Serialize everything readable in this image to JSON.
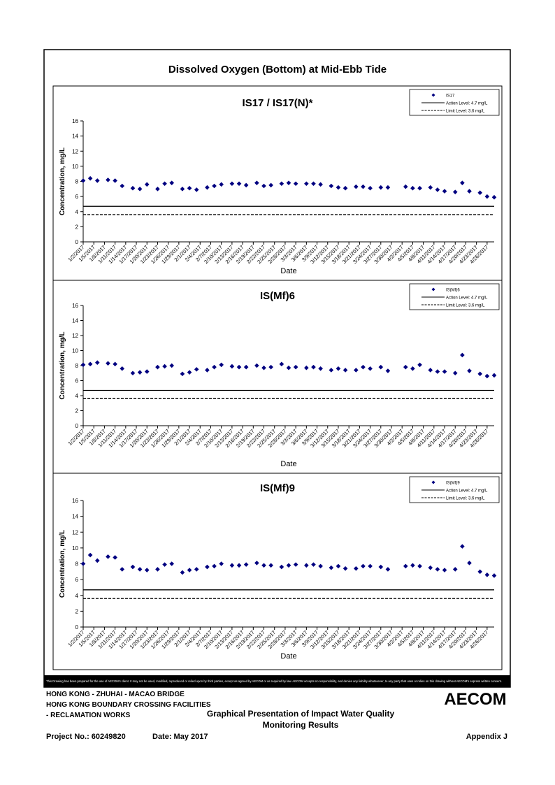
{
  "header": {
    "title": "Dissolved Oxygen (Bottom) at Mid-Ebb Tide"
  },
  "chart_data": [
    {
      "type": "scatter",
      "title": "IS17 / IS17(N)*",
      "xlabel": "Date",
      "ylabel": "Concentration, mg/L",
      "xlim": [
        "1/2/2017",
        "4/28/2017"
      ],
      "ylim": [
        0,
        16
      ],
      "yticks": [
        0,
        2,
        4,
        6,
        8,
        10,
        12,
        14,
        16
      ],
      "xticks": [
        "1/2/2017",
        "1/5/2017",
        "1/8/2017",
        "1/11/2017",
        "1/14/2017",
        "1/17/2017",
        "1/20/2017",
        "1/23/2017",
        "1/26/2017",
        "1/29/2017",
        "2/1/2017",
        "2/4/2017",
        "2/7/2017",
        "2/10/2017",
        "2/13/2017",
        "2/16/2017",
        "2/19/2017",
        "2/22/2017",
        "2/25/2017",
        "2/28/2017",
        "3/3/2017",
        "3/6/2017",
        "3/9/2017",
        "3/12/2017",
        "3/15/2017",
        "3/18/2017",
        "3/21/2017",
        "3/24/2017",
        "3/27/2017",
        "3/30/2017",
        "4/2/2017",
        "4/5/2017",
        "4/8/2017",
        "4/11/2017",
        "4/14/2017",
        "4/17/2017",
        "4/20/2017",
        "4/23/2017",
        "4/26/2017"
      ],
      "series": [
        {
          "name": "IS17",
          "color": "#000080",
          "x": [
            "1/2/2017",
            "1/4/2017",
            "1/6/2017",
            "1/9/2017",
            "1/11/2017",
            "1/13/2017",
            "1/16/2017",
            "1/18/2017",
            "1/20/2017",
            "1/23/2017",
            "1/25/2017",
            "1/27/2017",
            "1/30/2017",
            "2/1/2017",
            "2/3/2017",
            "2/6/2017",
            "2/8/2017",
            "2/10/2017",
            "2/13/2017",
            "2/15/2017",
            "2/17/2017",
            "2/20/2017",
            "2/22/2017",
            "2/24/2017",
            "2/27/2017",
            "3/1/2017",
            "3/3/2017",
            "3/6/2017",
            "3/8/2017",
            "3/10/2017",
            "3/13/2017",
            "3/15/2017",
            "3/17/2017",
            "3/20/2017",
            "3/22/2017",
            "3/24/2017",
            "3/27/2017",
            "3/29/2017",
            "4/3/2017",
            "4/5/2017",
            "4/7/2017",
            "4/10/2017",
            "4/12/2017",
            "4/14/2017",
            "4/17/2017",
            "4/19/2017",
            "4/21/2017",
            "4/24/2017",
            "4/26/2017",
            "4/28/2017"
          ],
          "values": [
            8.1,
            8.4,
            8.1,
            8.2,
            8.1,
            7.4,
            7.1,
            7.0,
            7.6,
            7.0,
            7.7,
            7.8,
            7.0,
            7.1,
            6.9,
            7.2,
            7.4,
            7.6,
            7.7,
            7.7,
            7.5,
            7.8,
            7.4,
            7.5,
            7.7,
            7.8,
            7.7,
            7.7,
            7.7,
            7.6,
            7.4,
            7.2,
            7.1,
            7.3,
            7.3,
            7.1,
            7.2,
            7.2,
            7.3,
            7.1,
            7.1,
            7.2,
            6.9,
            6.7,
            6.6,
            7.8,
            6.7,
            6.5,
            6.0,
            5.9
          ]
        }
      ],
      "reference_lines": [
        {
          "name": "Action Level: 4.7 mg/L",
          "value": 4.7,
          "style": "solid"
        },
        {
          "name": "Limit Level: 3.6 mg/L",
          "value": 3.6,
          "style": "dashed"
        }
      ]
    },
    {
      "type": "scatter",
      "title": "IS(Mf)6",
      "xlabel": "Date",
      "ylabel": "Concentration, mg/L",
      "xlim": [
        "1/2/2017",
        "4/28/2017"
      ],
      "ylim": [
        0,
        16
      ],
      "yticks": [
        0,
        2,
        4,
        6,
        8,
        10,
        12,
        14,
        16
      ],
      "xticks": [
        "1/2/2017",
        "1/5/2017",
        "1/8/2017",
        "1/11/2017",
        "1/14/2017",
        "1/17/2017",
        "1/20/2017",
        "1/23/2017",
        "1/26/2017",
        "1/29/2017",
        "2/1/2017",
        "2/4/2017",
        "2/7/2017",
        "2/10/2017",
        "2/13/2017",
        "2/16/2017",
        "2/19/2017",
        "2/22/2017",
        "2/25/2017",
        "2/28/2017",
        "3/3/2017",
        "3/6/2017",
        "3/9/2017",
        "3/12/2017",
        "3/15/2017",
        "3/18/2017",
        "3/21/2017",
        "3/24/2017",
        "3/27/2017",
        "3/30/2017",
        "4/2/2017",
        "4/5/2017",
        "4/8/2017",
        "4/11/2017",
        "4/14/2017",
        "4/17/2017",
        "4/20/2017",
        "4/23/2017",
        "4/26/2017"
      ],
      "series": [
        {
          "name": "IS(Mf)6",
          "color": "#000080",
          "x": [
            "1/2/2017",
            "1/4/2017",
            "1/6/2017",
            "1/9/2017",
            "1/11/2017",
            "1/13/2017",
            "1/16/2017",
            "1/18/2017",
            "1/20/2017",
            "1/23/2017",
            "1/25/2017",
            "1/27/2017",
            "1/30/2017",
            "2/1/2017",
            "2/3/2017",
            "2/6/2017",
            "2/8/2017",
            "2/10/2017",
            "2/13/2017",
            "2/15/2017",
            "2/17/2017",
            "2/20/2017",
            "2/22/2017",
            "2/24/2017",
            "2/27/2017",
            "3/1/2017",
            "3/3/2017",
            "3/6/2017",
            "3/8/2017",
            "3/10/2017",
            "3/13/2017",
            "3/15/2017",
            "3/17/2017",
            "3/20/2017",
            "3/22/2017",
            "3/24/2017",
            "3/27/2017",
            "3/29/2017",
            "4/3/2017",
            "4/5/2017",
            "4/7/2017",
            "4/10/2017",
            "4/12/2017",
            "4/14/2017",
            "4/17/2017",
            "4/19/2017",
            "4/21/2017",
            "4/24/2017",
            "4/26/2017",
            "4/28/2017"
          ],
          "values": [
            8.1,
            8.2,
            8.4,
            8.3,
            8.2,
            7.6,
            7.0,
            7.1,
            7.2,
            7.8,
            7.9,
            8.0,
            6.9,
            7.1,
            7.5,
            7.4,
            7.8,
            8.1,
            7.9,
            7.8,
            7.8,
            8.0,
            7.7,
            7.8,
            8.2,
            7.7,
            7.8,
            7.7,
            7.8,
            7.6,
            7.4,
            7.6,
            7.4,
            7.4,
            7.8,
            7.6,
            7.8,
            7.3,
            7.8,
            7.6,
            8.1,
            7.4,
            7.2,
            7.2,
            7.0,
            9.4,
            7.3,
            6.9,
            6.6,
            6.7
          ]
        }
      ],
      "reference_lines": [
        {
          "name": "Action Level: 4.7 mg/L",
          "value": 4.7,
          "style": "solid"
        },
        {
          "name": "Limit Level: 3.6 mg/L",
          "value": 3.6,
          "style": "dashed"
        }
      ]
    },
    {
      "type": "scatter",
      "title": "IS(Mf)9",
      "xlabel": "Date",
      "ylabel": "Concentration, mg/L",
      "xlim": [
        "1/2/2017",
        "4/28/2017"
      ],
      "ylim": [
        0,
        16
      ],
      "yticks": [
        0,
        2,
        4,
        6,
        8,
        10,
        12,
        14,
        16
      ],
      "xticks": [
        "1/2/2017",
        "1/5/2017",
        "1/8/2017",
        "1/11/2017",
        "1/14/2017",
        "1/17/2017",
        "1/20/2017",
        "1/23/2017",
        "1/26/2017",
        "1/29/2017",
        "2/1/2017",
        "2/4/2017",
        "2/7/2017",
        "2/10/2017",
        "2/13/2017",
        "2/16/2017",
        "2/19/2017",
        "2/22/2017",
        "2/25/2017",
        "2/28/2017",
        "3/3/2017",
        "3/6/2017",
        "3/9/2017",
        "3/12/2017",
        "3/15/2017",
        "3/18/2017",
        "3/21/2017",
        "3/24/2017",
        "3/27/2017",
        "3/30/2017",
        "4/2/2017",
        "4/5/2017",
        "4/8/2017",
        "4/11/2017",
        "4/14/2017",
        "4/17/2017",
        "4/20/2017",
        "4/23/2017",
        "4/26/2017"
      ],
      "series": [
        {
          "name": "IS(Mf)9",
          "color": "#000080",
          "x": [
            "1/2/2017",
            "1/4/2017",
            "1/6/2017",
            "1/9/2017",
            "1/11/2017",
            "1/13/2017",
            "1/16/2017",
            "1/18/2017",
            "1/20/2017",
            "1/23/2017",
            "1/25/2017",
            "1/27/2017",
            "1/30/2017",
            "2/1/2017",
            "2/3/2017",
            "2/6/2017",
            "2/8/2017",
            "2/10/2017",
            "2/13/2017",
            "2/15/2017",
            "2/17/2017",
            "2/20/2017",
            "2/22/2017",
            "2/24/2017",
            "2/27/2017",
            "3/1/2017",
            "3/3/2017",
            "3/6/2017",
            "3/8/2017",
            "3/10/2017",
            "3/13/2017",
            "3/15/2017",
            "3/17/2017",
            "3/20/2017",
            "3/22/2017",
            "3/24/2017",
            "3/27/2017",
            "3/29/2017",
            "4/3/2017",
            "4/5/2017",
            "4/7/2017",
            "4/10/2017",
            "4/12/2017",
            "4/14/2017",
            "4/17/2017",
            "4/19/2017",
            "4/21/2017",
            "4/24/2017",
            "4/26/2017",
            "4/28/2017"
          ],
          "values": [
            8.0,
            9.1,
            8.4,
            8.9,
            8.8,
            7.3,
            7.6,
            7.3,
            7.2,
            7.3,
            7.9,
            8.0,
            6.9,
            7.2,
            7.3,
            7.6,
            7.7,
            8.0,
            7.8,
            7.8,
            7.9,
            8.1,
            7.8,
            7.8,
            7.6,
            7.8,
            7.9,
            7.8,
            7.9,
            7.7,
            7.5,
            7.7,
            7.4,
            7.4,
            7.7,
            7.7,
            7.6,
            7.3,
            7.7,
            7.8,
            7.7,
            7.5,
            7.3,
            7.2,
            7.3,
            10.2,
            8.1,
            7.0,
            6.6,
            6.5
          ]
        }
      ],
      "reference_lines": [
        {
          "name": "Action Level: 4.7 mg/L",
          "value": 4.7,
          "style": "solid"
        },
        {
          "name": "Limit Level: 3.6 mg/L",
          "value": 3.6,
          "style": "dashed"
        }
      ]
    }
  ],
  "footer": {
    "disclaimer": "This Drawing has been prepared for the use of AECOM's client. It may not be used, modified, reproduced or relied upon by third parties, except as agreed by AECOM or as required by law. AECOM accepts no responsibility, and denies any liability whatsoever, to any party that uses or relies on this drawing without AECOM's express written consent.",
    "project_lines": [
      "HONG KONG - ZHUHAI - MACAO BRIDGE",
      "HONG KONG BOUNDARY CROSSING FACILITIES",
      "- RECLAMATION WORKS"
    ],
    "logo": "AECOM",
    "drawing_title": [
      "Graphical Presentation of Impact Water Quality",
      "Monitoring Results"
    ],
    "project_no": "Project No.: 60249820",
    "date": "Date: May 2017",
    "appendix": "Appendix J"
  }
}
